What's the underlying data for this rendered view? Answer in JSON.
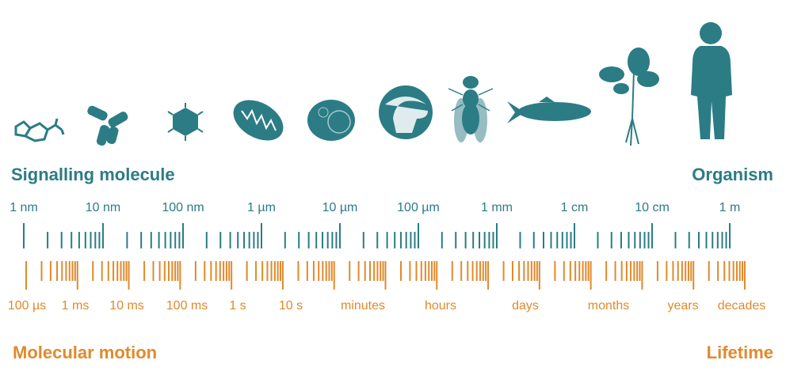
{
  "headings": {
    "size_left": "Signalling molecule",
    "size_right": "Organism",
    "time_left": "Molecular motion",
    "time_right": "Lifetime"
  },
  "length_scale": {
    "labels": [
      "1 nm",
      "10 nm",
      "100 nm",
      "1 µm",
      "10 µm",
      "100 µm",
      "1 mm",
      "1 cm",
      "10 cm",
      "1 m"
    ]
  },
  "time_scale": {
    "labels": [
      "100 µs",
      "1 ms",
      "10 ms",
      "100 ms",
      "1 s",
      "10 s",
      "minutes",
      "hours",
      "days",
      "months",
      "years",
      "decades"
    ]
  }
}
